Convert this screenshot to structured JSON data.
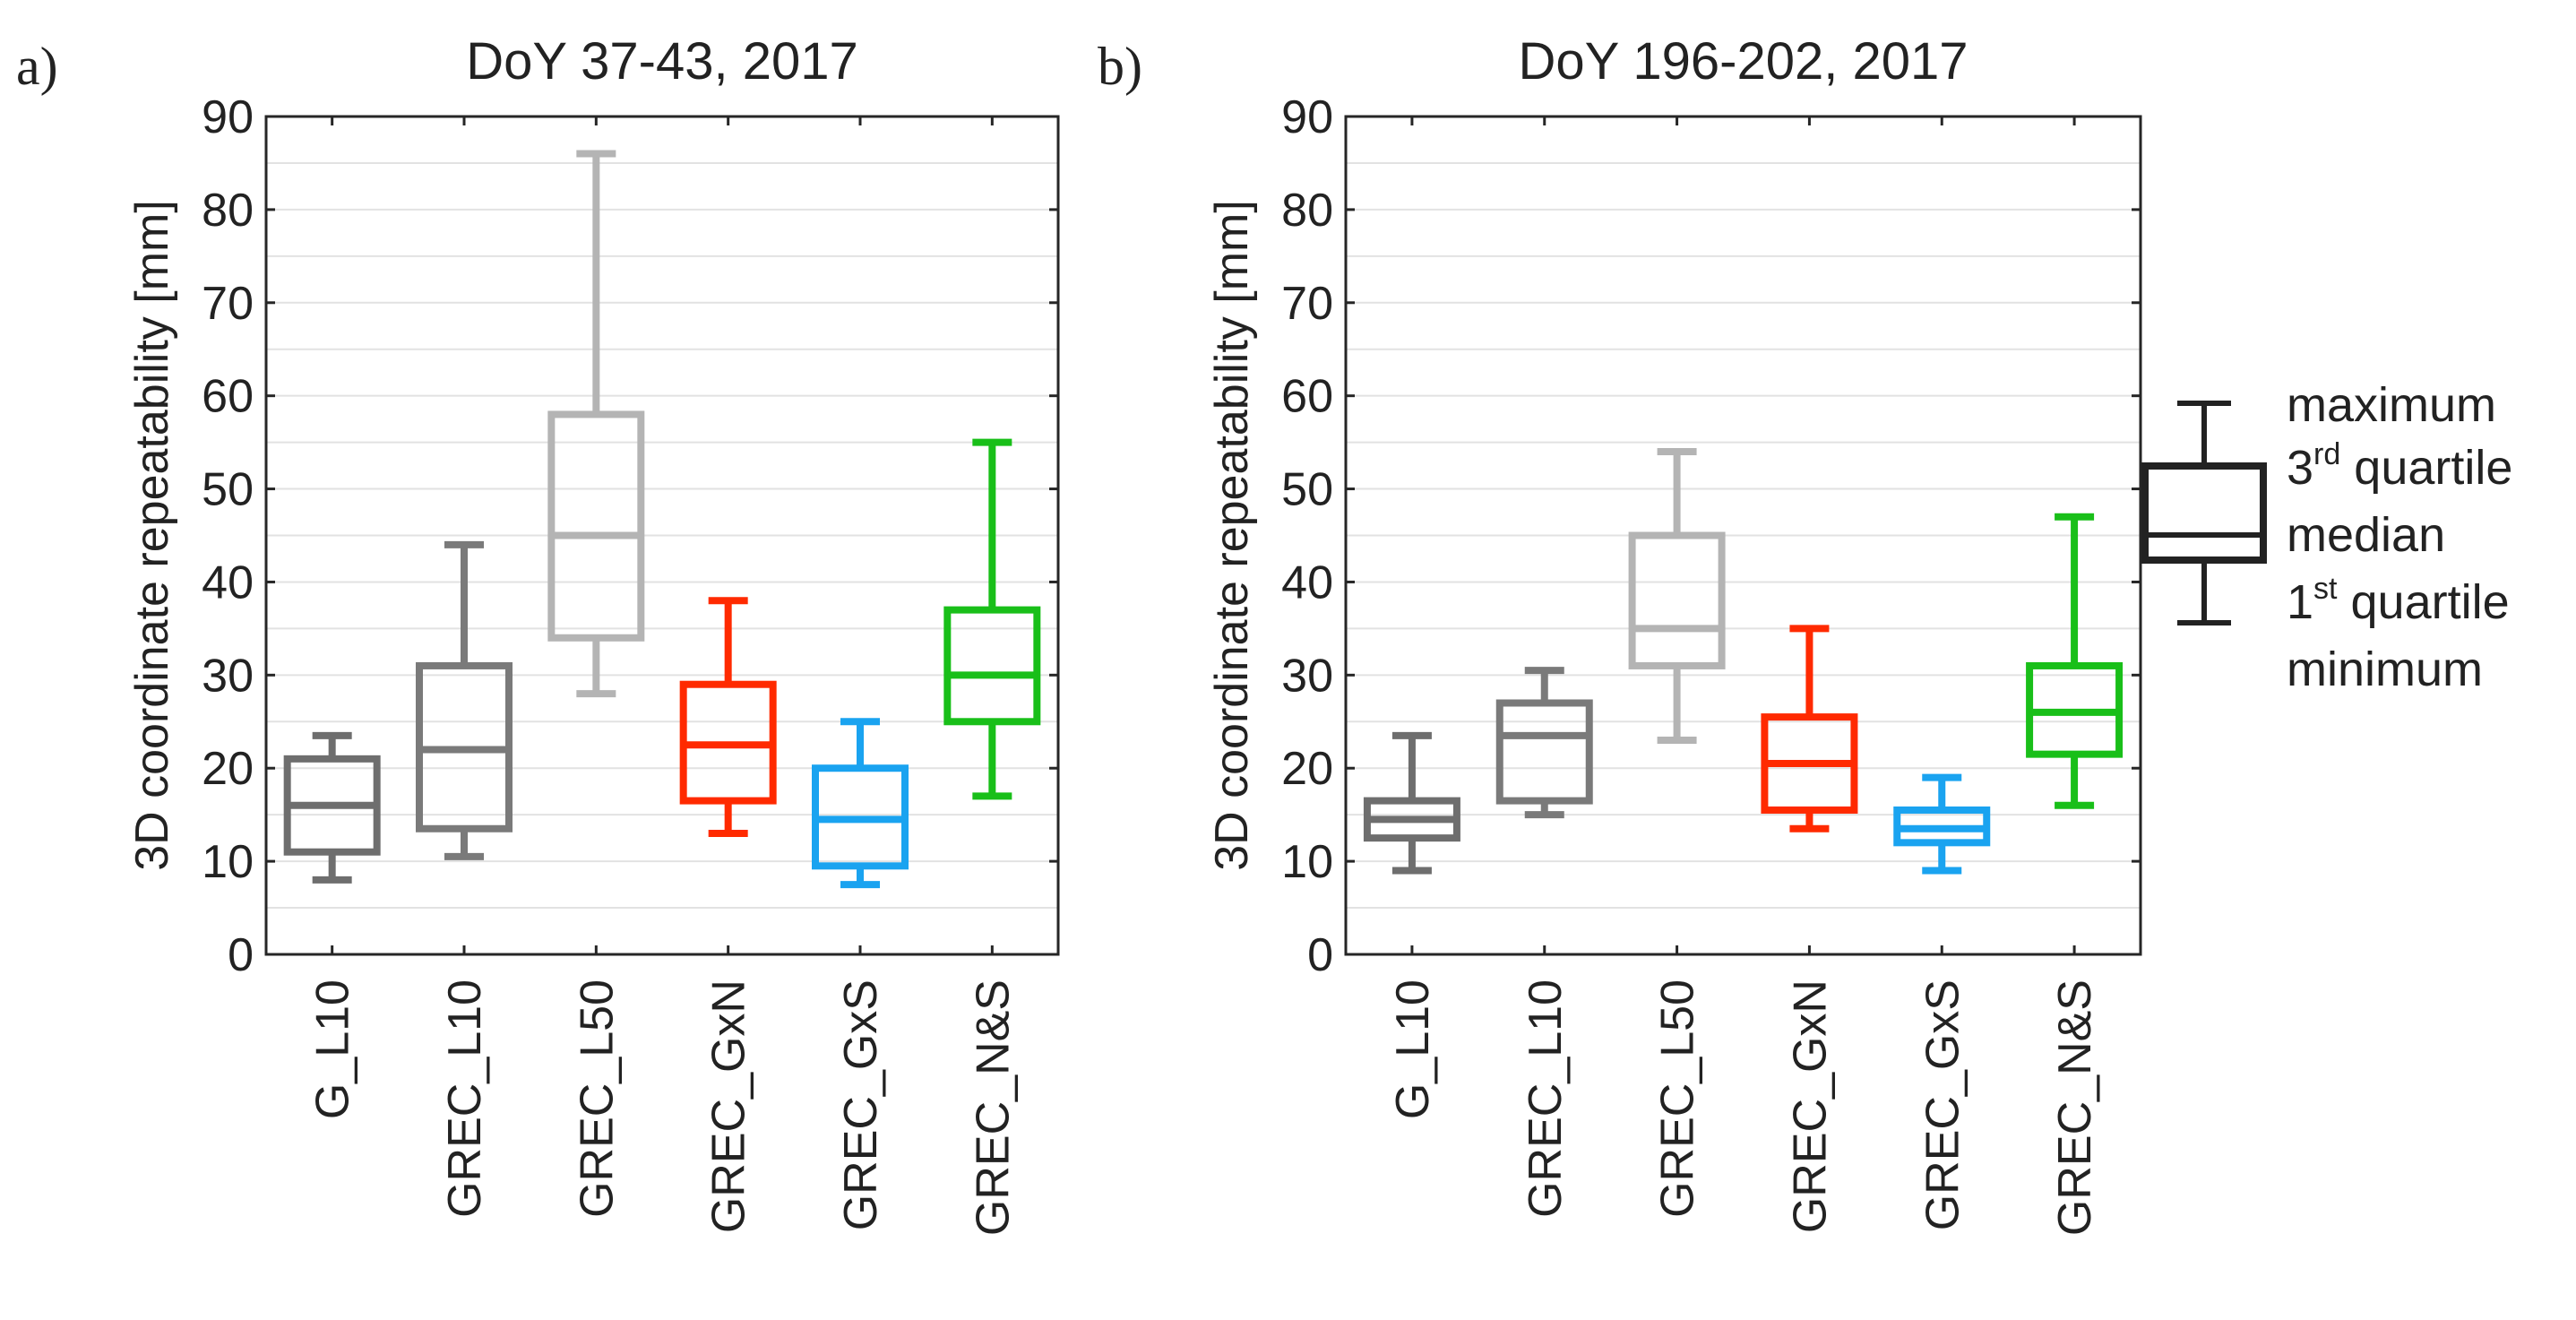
{
  "figure": {
    "panel_a_letter": "a)",
    "panel_b_letter": "b)"
  },
  "chart_data": [
    {
      "type": "box",
      "title": "DoY 37-43, 2017",
      "xlabel": "",
      "ylabel": "3D coordinate repeatability [mm]",
      "ylim": [
        0,
        90
      ],
      "yticks": [
        0,
        10,
        20,
        30,
        40,
        50,
        60,
        70,
        80,
        90
      ],
      "grid": "horizontal minor gridlines every 5",
      "categories": [
        "G_L10",
        "GREC_L10",
        "GREC_L50",
        "GREC_GxN",
        "GREC_GxS",
        "GREC_N&S"
      ],
      "series": [
        {
          "color": "#6e6e6e",
          "min": 8,
          "q1": 11,
          "median": 16,
          "q3": 21,
          "max": 23.5
        },
        {
          "color": "#7a7a7a",
          "min": 10.5,
          "q1": 13.5,
          "median": 22,
          "q3": 31,
          "max": 44
        },
        {
          "color": "#b4b4b4",
          "min": 28,
          "q1": 34,
          "median": 45,
          "q3": 58,
          "max": 86
        },
        {
          "color": "#ff2a00",
          "min": 13,
          "q1": 16.5,
          "median": 22.5,
          "q3": 29,
          "max": 38
        },
        {
          "color": "#1aa3f0",
          "min": 7.5,
          "q1": 9.5,
          "median": 14.5,
          "q3": 20,
          "max": 25
        },
        {
          "color": "#19bf19",
          "min": 17,
          "q1": 25,
          "median": 30,
          "q3": 37,
          "max": 55
        }
      ]
    },
    {
      "type": "box",
      "title": "DoY 196-202, 2017",
      "xlabel": "",
      "ylabel": "3D coordinate repeatability [mm]",
      "ylim": [
        0,
        90
      ],
      "yticks": [
        0,
        10,
        20,
        30,
        40,
        50,
        60,
        70,
        80,
        90
      ],
      "grid": "horizontal minor gridlines every 5",
      "categories": [
        "G_L10",
        "GREC_L10",
        "GREC_L50",
        "GREC_GxN",
        "GREC_GxS",
        "GREC_N&S"
      ],
      "series": [
        {
          "color": "#6e6e6e",
          "min": 9,
          "q1": 12.5,
          "median": 14.5,
          "q3": 16.5,
          "max": 23.5
        },
        {
          "color": "#7a7a7a",
          "min": 15,
          "q1": 16.5,
          "median": 23.5,
          "q3": 27,
          "max": 30.5
        },
        {
          "color": "#b4b4b4",
          "min": 23,
          "q1": 31,
          "median": 35,
          "q3": 45,
          "max": 54
        },
        {
          "color": "#ff2a00",
          "min": 13.5,
          "q1": 15.5,
          "median": 20.5,
          "q3": 25.5,
          "max": 35
        },
        {
          "color": "#1aa3f0",
          "min": 9,
          "q1": 12,
          "median": 13.5,
          "q3": 15.5,
          "max": 19
        },
        {
          "color": "#19bf19",
          "min": 16,
          "q1": 21.5,
          "median": 26,
          "q3": 31,
          "max": 47
        }
      ]
    }
  ],
  "legend": {
    "color": "#222222",
    "maximum": "maximum",
    "q3_prefix": "3",
    "q3_sup": "rd",
    "q3_suffix": " quartile",
    "median": "median",
    "q1_prefix": "1",
    "q1_sup": "st",
    "q1_suffix": " quartile",
    "minimum": "minimum"
  }
}
